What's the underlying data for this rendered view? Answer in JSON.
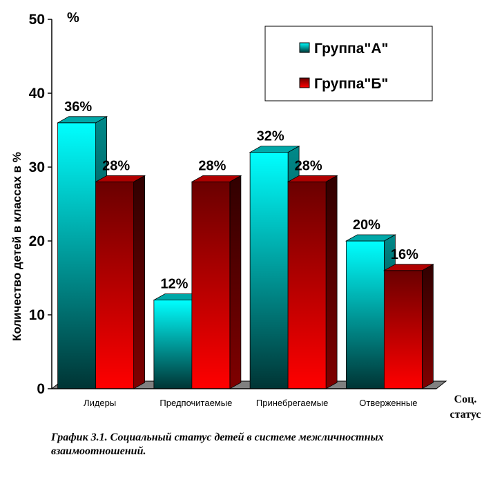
{
  "chart_data": {
    "type": "bar",
    "categories": [
      "Лидеры",
      "Предпочитаемые",
      "Принебрегаемые",
      "Отверженные"
    ],
    "series": [
      {
        "name": "Группа\"А\"",
        "values": [
          36,
          12,
          32,
          20
        ],
        "data_labels": [
          "36%",
          "12%",
          "32%",
          "20%"
        ],
        "color": "#00d8d8"
      },
      {
        "name": "Группа\"Б\"",
        "values": [
          28,
          28,
          28,
          16
        ],
        "data_labels": [
          "28%",
          "28%",
          "28%",
          "16%"
        ],
        "color": "#e00000"
      }
    ],
    "ylabel": "Количество детей в классах в %",
    "y_unit": "%",
    "xlabel_line1": "Соц.",
    "xlabel_line2": "статус",
    "ylim": [
      0,
      50
    ],
    "yticks": [
      "0",
      "10",
      "20",
      "30",
      "40",
      "50"
    ],
    "legend_position": "top-right",
    "grid": false
  },
  "caption": "График 3.1. Социальный статус детей в системе межличностных взаимоотношений."
}
